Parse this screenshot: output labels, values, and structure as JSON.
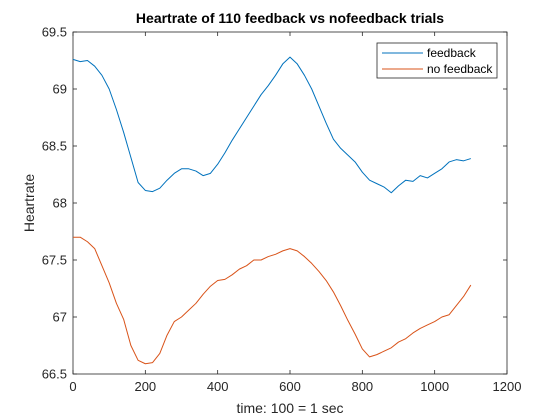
{
  "chart_data": {
    "type": "line",
    "title": "Heartrate of 110 feedback vs nofeedback trials",
    "xlabel": "time: 100 = 1 sec",
    "ylabel": "Heartrate",
    "xlim": [
      0,
      1200
    ],
    "ylim": [
      66.5,
      69.5
    ],
    "xticks": [
      0,
      200,
      400,
      600,
      800,
      1000,
      1200
    ],
    "yticks": [
      66.5,
      67,
      67.5,
      68,
      68.5,
      69,
      69.5
    ],
    "xtick_labels": [
      "0",
      "200",
      "400",
      "600",
      "800",
      "1000",
      "1200"
    ],
    "ytick_labels": [
      "66.5",
      "67",
      "67.5",
      "68",
      "68.5",
      "69",
      "69.5"
    ],
    "grid": false,
    "legend_position": "top-right",
    "series": [
      {
        "name": "feedback",
        "color": "#0072BD",
        "x": [
          0,
          20,
          40,
          60,
          80,
          100,
          120,
          140,
          160,
          180,
          200,
          220,
          240,
          260,
          280,
          300,
          320,
          340,
          360,
          380,
          400,
          420,
          440,
          460,
          480,
          500,
          520,
          540,
          560,
          580,
          600,
          620,
          640,
          660,
          680,
          700,
          720,
          740,
          760,
          780,
          800,
          820,
          840,
          860,
          880,
          900,
          920,
          940,
          960,
          980,
          1000,
          1020,
          1040,
          1060,
          1080,
          1100
        ],
        "y": [
          69.26,
          69.24,
          69.25,
          69.2,
          69.12,
          69.0,
          68.82,
          68.62,
          68.4,
          68.18,
          68.11,
          68.1,
          68.13,
          68.2,
          68.26,
          68.3,
          68.3,
          68.28,
          68.24,
          68.26,
          68.34,
          68.44,
          68.55,
          68.65,
          68.75,
          68.85,
          68.95,
          69.03,
          69.12,
          69.22,
          69.28,
          69.22,
          69.12,
          69.0,
          68.85,
          68.7,
          68.56,
          68.48,
          68.42,
          68.36,
          68.27,
          68.2,
          68.17,
          68.14,
          68.09,
          68.15,
          68.2,
          68.19,
          68.24,
          68.22,
          68.26,
          68.3,
          68.36,
          68.38,
          68.37,
          68.39
        ]
      },
      {
        "name": "no feedback",
        "color": "#D95319",
        "x": [
          0,
          20,
          40,
          60,
          80,
          100,
          120,
          140,
          160,
          180,
          200,
          220,
          240,
          260,
          280,
          300,
          320,
          340,
          360,
          380,
          400,
          420,
          440,
          460,
          480,
          500,
          520,
          540,
          560,
          580,
          600,
          620,
          640,
          660,
          680,
          700,
          720,
          740,
          760,
          780,
          800,
          820,
          840,
          860,
          880,
          900,
          920,
          940,
          960,
          980,
          1000,
          1020,
          1040,
          1060,
          1080,
          1100
        ],
        "y": [
          67.7,
          67.7,
          67.66,
          67.6,
          67.45,
          67.3,
          67.12,
          66.98,
          66.75,
          66.62,
          66.59,
          66.6,
          66.68,
          66.84,
          66.96,
          67.0,
          67.06,
          67.12,
          67.2,
          67.27,
          67.32,
          67.33,
          67.37,
          67.42,
          67.45,
          67.5,
          67.5,
          67.53,
          67.55,
          67.58,
          67.6,
          67.58,
          67.53,
          67.47,
          67.4,
          67.32,
          67.22,
          67.1,
          66.97,
          66.85,
          66.72,
          66.65,
          66.67,
          66.7,
          66.73,
          66.78,
          66.81,
          66.86,
          66.9,
          66.93,
          66.96,
          67.0,
          67.02,
          67.1,
          67.18,
          67.28
        ]
      }
    ]
  }
}
